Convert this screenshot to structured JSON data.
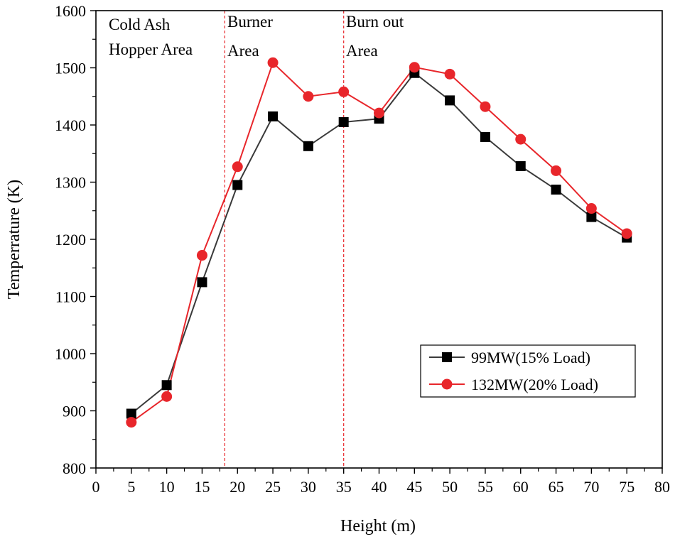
{
  "chart_data": {
    "type": "line",
    "title": "",
    "xlabel": "Height (m)",
    "ylabel": "Temperrature (K)",
    "xlim": [
      0,
      80
    ],
    "ylim": [
      800,
      1600
    ],
    "x_major_ticks": [
      0,
      5,
      10,
      15,
      20,
      25,
      30,
      35,
      40,
      45,
      50,
      55,
      60,
      65,
      70,
      75,
      80
    ],
    "y_major_ticks": [
      800,
      900,
      1000,
      1100,
      1200,
      1300,
      1400,
      1500,
      1600
    ],
    "x_minor_step": 2.5,
    "y_minor_step": 50,
    "grid": false,
    "legend_position": "lower-right",
    "x": [
      5,
      10,
      15,
      20,
      25,
      30,
      35,
      40,
      45,
      50,
      55,
      60,
      65,
      70,
      75
    ],
    "series": [
      {
        "name": "99MW(15% Load)",
        "color": "#000000",
        "line_color": "#3a3a3a",
        "marker": "square",
        "values": [
          895,
          945,
          1125,
          1295,
          1415,
          1363,
          1405,
          1411,
          1491,
          1443,
          1379,
          1328,
          1287,
          1239,
          1203
        ]
      },
      {
        "name": "132MW(20% Load)",
        "color": "#e8262b",
        "line_color": "#e8262b",
        "marker": "circle",
        "values": [
          880,
          925,
          1172,
          1327,
          1509,
          1450,
          1458,
          1421,
          1501,
          1489,
          1432,
          1375,
          1320,
          1254,
          1210
        ]
      }
    ],
    "vertical_lines": [
      {
        "x": 18.2,
        "color": "#e8262b",
        "style": "dashed"
      },
      {
        "x": 35,
        "color": "#e8262b",
        "style": "dashed"
      }
    ],
    "annotations": [
      {
        "name": "annotation-cold-ash-line1",
        "text": "Cold Ash"
      },
      {
        "name": "annotation-cold-ash-line2",
        "text": "Hopper Area"
      },
      {
        "name": "annotation-burner-line1",
        "text": "Burner"
      },
      {
        "name": "annotation-burner-line2",
        "text": "Area"
      },
      {
        "name": "annotation-burnout-line1",
        "text": "Burn out"
      },
      {
        "name": "annotation-burnout-line2",
        "text": "Area"
      }
    ]
  }
}
